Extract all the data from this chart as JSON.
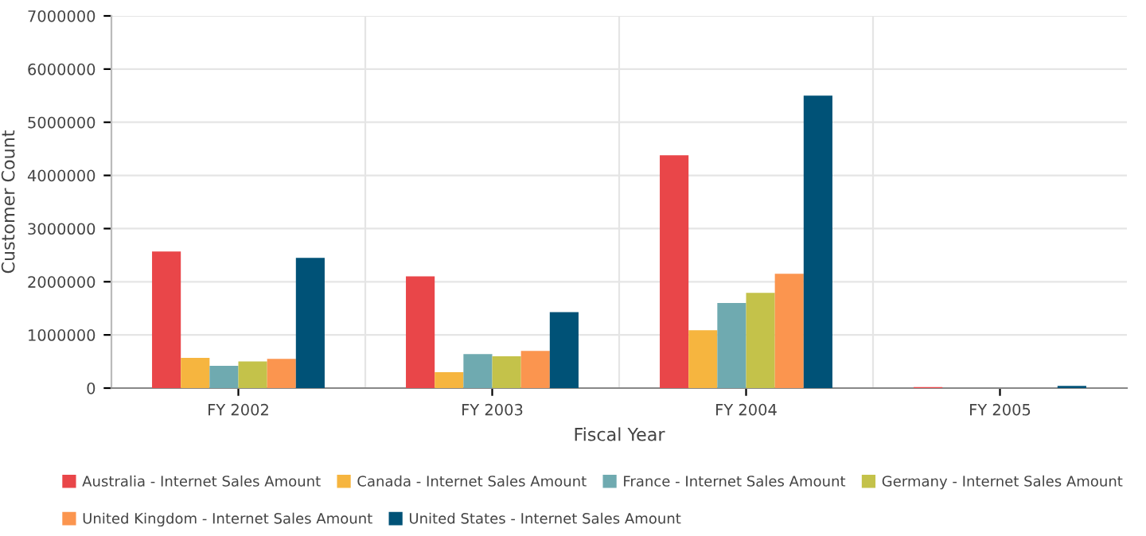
{
  "chart_data": {
    "type": "bar",
    "xlabel": "Fiscal Year",
    "ylabel": "Customer Count",
    "categories": [
      "FY 2002",
      "FY 2003",
      "FY 2004",
      "FY 2005"
    ],
    "series": [
      {
        "name": "Australia - Internet Sales Amount",
        "color": "#e94649",
        "values": [
          2570000,
          2100000,
          4380000,
          20000
        ]
      },
      {
        "name": "Canada - Internet Sales Amount",
        "color": "#f6b53f",
        "values": [
          570000,
          300000,
          1090000,
          0
        ]
      },
      {
        "name": "France - Internet Sales Amount",
        "color": "#6faab0",
        "values": [
          420000,
          640000,
          1600000,
          0
        ]
      },
      {
        "name": "Germany - Internet Sales Amount",
        "color": "#c4c24a",
        "values": [
          500000,
          600000,
          1790000,
          0
        ]
      },
      {
        "name": "United Kingdom - Internet Sales Amount",
        "color": "#fb954f",
        "values": [
          550000,
          700000,
          2150000,
          0
        ]
      },
      {
        "name": "United States - Internet Sales Amount",
        "color": "#005277",
        "values": [
          2450000,
          1430000,
          5500000,
          40000
        ]
      }
    ],
    "ylim": [
      0,
      7000000
    ],
    "yticks": [
      0,
      1000000,
      2000000,
      3000000,
      4000000,
      5000000,
      6000000,
      7000000
    ],
    "grid": true,
    "legend": "bottom"
  }
}
